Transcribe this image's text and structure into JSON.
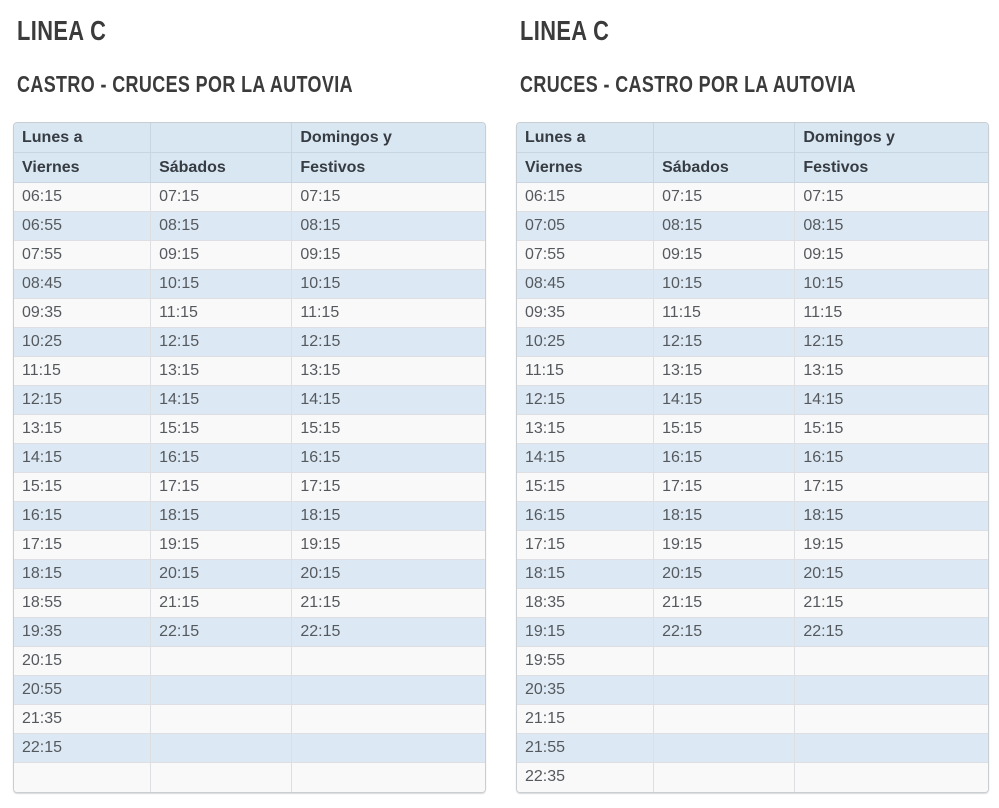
{
  "page": {
    "background": "#ffffff"
  },
  "colors": {
    "title_text": "#3b3b3b",
    "header_bg": "#d9e7f3",
    "header_text": "#363c42",
    "row_white": "#f9f9f9",
    "row_blue": "#dce9f4",
    "cell_text": "#55595e",
    "table_border": "#c9ced3"
  },
  "tables": [
    {
      "line_title": "LINEA C",
      "route_title": "CASTRO - CRUCES POR LA AUTOVIA",
      "header_row1": [
        "Lunes a",
        "",
        "Domingos y"
      ],
      "header_row2": [
        "Viernes",
        "Sábados",
        "Festivos"
      ],
      "columns": [
        "Lunes a Viernes",
        "Sábados",
        "Domingos y Festivos"
      ],
      "rows": [
        [
          "06:15",
          "07:15",
          "07:15"
        ],
        [
          "06:55",
          "08:15",
          "08:15"
        ],
        [
          "07:55",
          "09:15",
          "09:15"
        ],
        [
          "08:45",
          "10:15",
          "10:15"
        ],
        [
          "09:35",
          "11:15",
          "11:15"
        ],
        [
          "10:25",
          "12:15",
          "12:15"
        ],
        [
          "11:15",
          "13:15",
          "13:15"
        ],
        [
          "12:15",
          "14:15",
          "14:15"
        ],
        [
          "13:15",
          "15:15",
          "15:15"
        ],
        [
          "14:15",
          "16:15",
          "16:15"
        ],
        [
          "15:15",
          "17:15",
          "17:15"
        ],
        [
          "16:15",
          "18:15",
          "18:15"
        ],
        [
          "17:15",
          "19:15",
          "19:15"
        ],
        [
          "18:15",
          "20:15",
          "20:15"
        ],
        [
          "18:55",
          "21:15",
          "21:15"
        ],
        [
          "19:35",
          "22:15",
          "22:15"
        ],
        [
          "20:15",
          "",
          ""
        ],
        [
          "20:55",
          "",
          ""
        ],
        [
          "21:35",
          "",
          ""
        ],
        [
          "22:15",
          "",
          ""
        ],
        [
          "",
          "",
          ""
        ]
      ]
    },
    {
      "line_title": "LINEA C",
      "route_title": "CRUCES - CASTRO POR LA AUTOVIA",
      "header_row1": [
        "Lunes a",
        "",
        "Domingos y"
      ],
      "header_row2": [
        "Viernes",
        "Sábados",
        "Festivos"
      ],
      "columns": [
        "Lunes a Viernes",
        "Sábados",
        "Domingos y Festivos"
      ],
      "rows": [
        [
          "06:15",
          "07:15",
          "07:15"
        ],
        [
          "07:05",
          "08:15",
          "08:15"
        ],
        [
          "07:55",
          "09:15",
          "09:15"
        ],
        [
          "08:45",
          "10:15",
          "10:15"
        ],
        [
          "09:35",
          "11:15",
          "11:15"
        ],
        [
          "10:25",
          "12:15",
          "12:15"
        ],
        [
          "11:15",
          "13:15",
          "13:15"
        ],
        [
          "12:15",
          "14:15",
          "14:15"
        ],
        [
          "13:15",
          "15:15",
          "15:15"
        ],
        [
          "14:15",
          "16:15",
          "16:15"
        ],
        [
          "15:15",
          "17:15",
          "17:15"
        ],
        [
          "16:15",
          "18:15",
          "18:15"
        ],
        [
          "17:15",
          "19:15",
          "19:15"
        ],
        [
          "18:15",
          "20:15",
          "20:15"
        ],
        [
          "18:35",
          "21:15",
          "21:15"
        ],
        [
          "19:15",
          "22:15",
          "22:15"
        ],
        [
          "19:55",
          "",
          ""
        ],
        [
          "20:35",
          "",
          ""
        ],
        [
          "21:15",
          "",
          ""
        ],
        [
          "21:55",
          "",
          ""
        ],
        [
          "22:35",
          "",
          ""
        ]
      ]
    }
  ]
}
